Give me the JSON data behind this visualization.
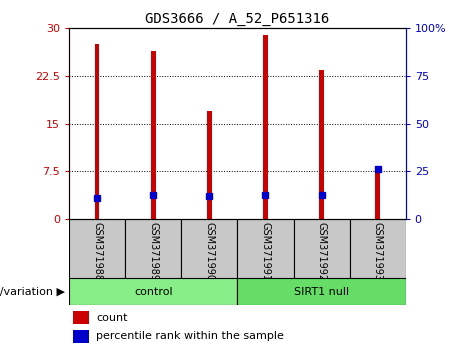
{
  "title": "GDS3666 / A_52_P651316",
  "samples": [
    "GSM371988",
    "GSM371989",
    "GSM371990",
    "GSM371991",
    "GSM371992",
    "GSM371993"
  ],
  "counts": [
    27.5,
    26.5,
    17.0,
    29.0,
    23.5,
    7.8
  ],
  "percentile_ranks": [
    11.0,
    12.5,
    12.0,
    12.5,
    12.5,
    26.0
  ],
  "left_ylim": [
    0,
    30
  ],
  "right_ylim": [
    0,
    100
  ],
  "left_yticks": [
    0,
    7.5,
    15,
    22.5,
    30
  ],
  "right_yticks": [
    0,
    25,
    50,
    75,
    100
  ],
  "left_yticklabels": [
    "0",
    "7.5",
    "15",
    "22.5",
    "30"
  ],
  "right_yticklabels": [
    "0",
    "25",
    "50",
    "75",
    "100%"
  ],
  "bar_color": "#cc0000",
  "marker_color": "#0000cc",
  "bar_width": 0.08,
  "groups": [
    {
      "label": "control",
      "samples": [
        0,
        1,
        2
      ],
      "color": "#88ee88"
    },
    {
      "label": "SIRT1 null",
      "samples": [
        3,
        4,
        5
      ],
      "color": "#66dd66"
    }
  ],
  "group_label": "genotype/variation",
  "legend_count_label": "count",
  "legend_pct_label": "percentile rank within the sample",
  "left_tick_color": "#cc0000",
  "right_tick_color": "#0000cc",
  "plot_bg": "#ffffff",
  "sample_area_bg": "#c8c8c8",
  "group_border_color": "#000000"
}
